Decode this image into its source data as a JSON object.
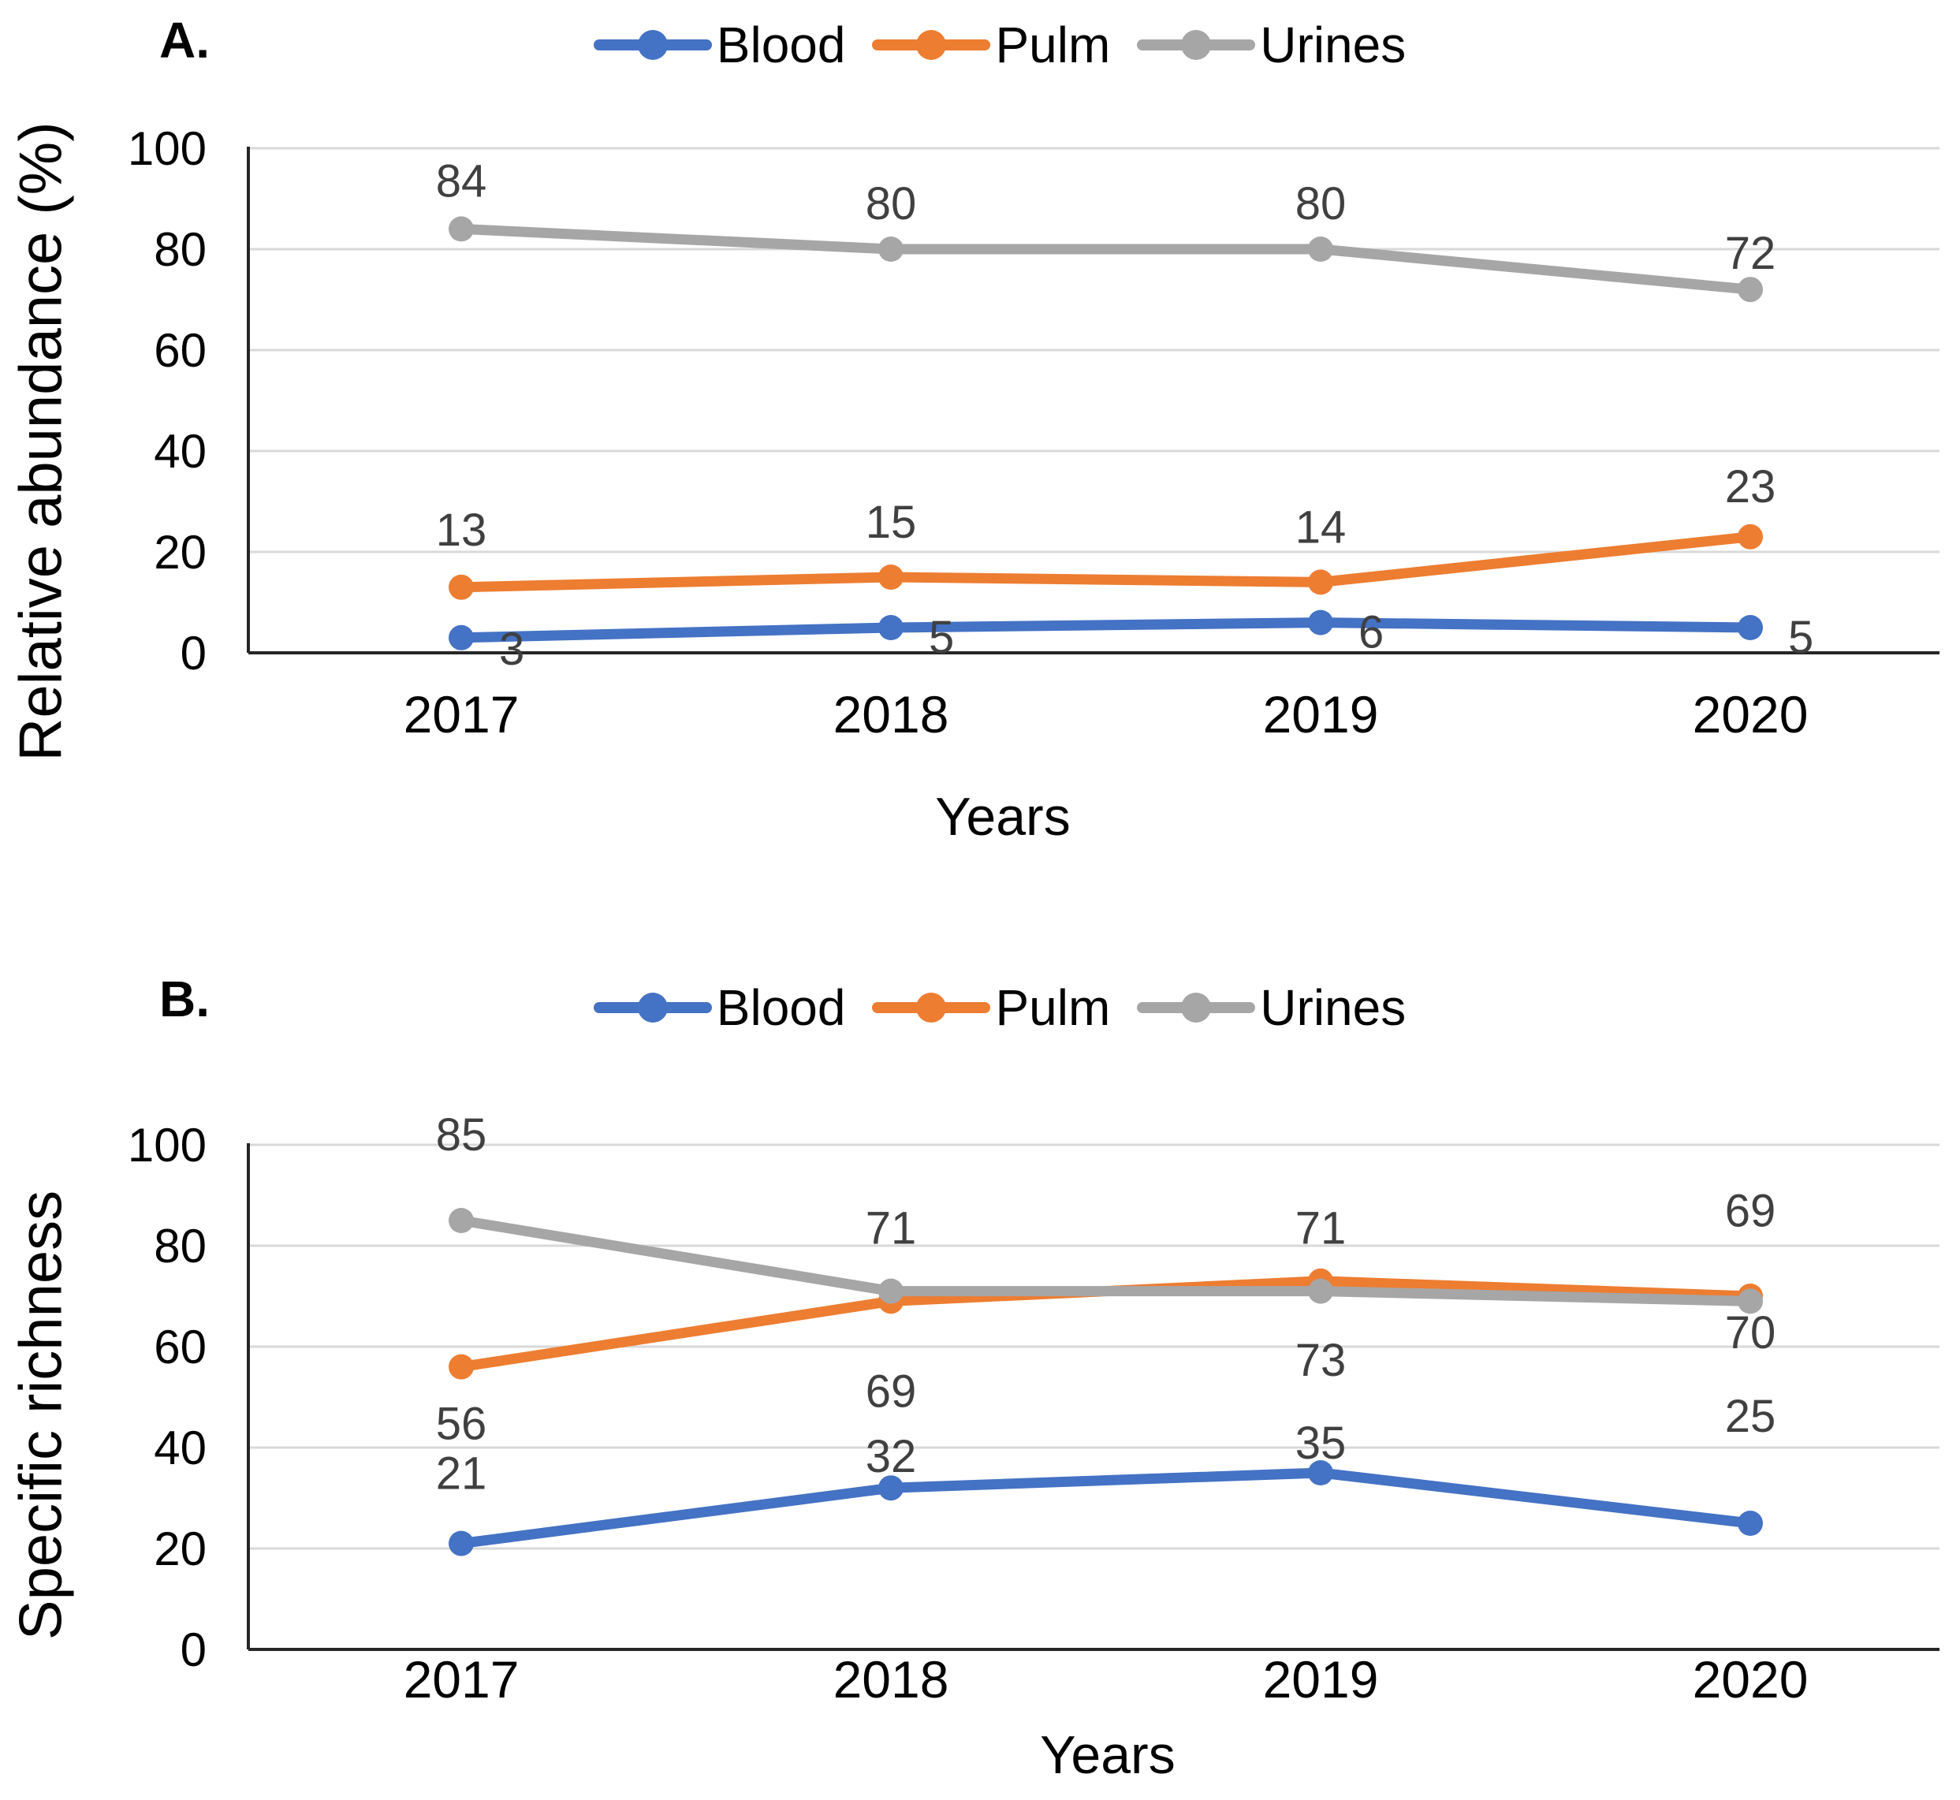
{
  "figure": {
    "background": "#FFFFFF"
  },
  "style_colors": {
    "grid": "#D9D9D9",
    "axis": "#262626",
    "tick_label": "#000000",
    "data_label": "#404040"
  },
  "chart_data": [
    {
      "panel_label": "A.",
      "type": "line",
      "categories": [
        "2017",
        "2018",
        "2019",
        "2020"
      ],
      "series": [
        {
          "name": "Blood",
          "color": "#4472C4",
          "values": [
            3,
            5,
            6,
            5
          ]
        },
        {
          "name": "Pulm",
          "color": "#ED7D31",
          "values": [
            13,
            15,
            14,
            23
          ]
        },
        {
          "name": "Urines",
          "color": "#A6A6A6",
          "values": [
            84,
            80,
            80,
            72
          ]
        }
      ],
      "xlabel": "Years",
      "ylabel": "Relative abundance (%)",
      "ylim": [
        0,
        100
      ],
      "yticks": [
        0,
        20,
        40,
        60,
        80,
        100
      ],
      "grid": true,
      "legend_position": "top",
      "data_labels": true
    },
    {
      "panel_label": "B.",
      "type": "line",
      "categories": [
        "2017",
        "2018",
        "2019",
        "2020"
      ],
      "series": [
        {
          "name": "Blood",
          "color": "#4472C4",
          "values": [
            21,
            32,
            35,
            25
          ]
        },
        {
          "name": "Pulm",
          "color": "#ED7D31",
          "values": [
            56,
            69,
            73,
            70
          ]
        },
        {
          "name": "Urines",
          "color": "#A6A6A6",
          "values": [
            85,
            71,
            71,
            69
          ]
        }
      ],
      "xlabel": "Years",
      "ylabel": "Specific richness",
      "ylim": [
        0,
        100
      ],
      "yticks": [
        0,
        20,
        40,
        60,
        80,
        100
      ],
      "grid": true,
      "legend_position": "top",
      "data_labels": true
    }
  ]
}
